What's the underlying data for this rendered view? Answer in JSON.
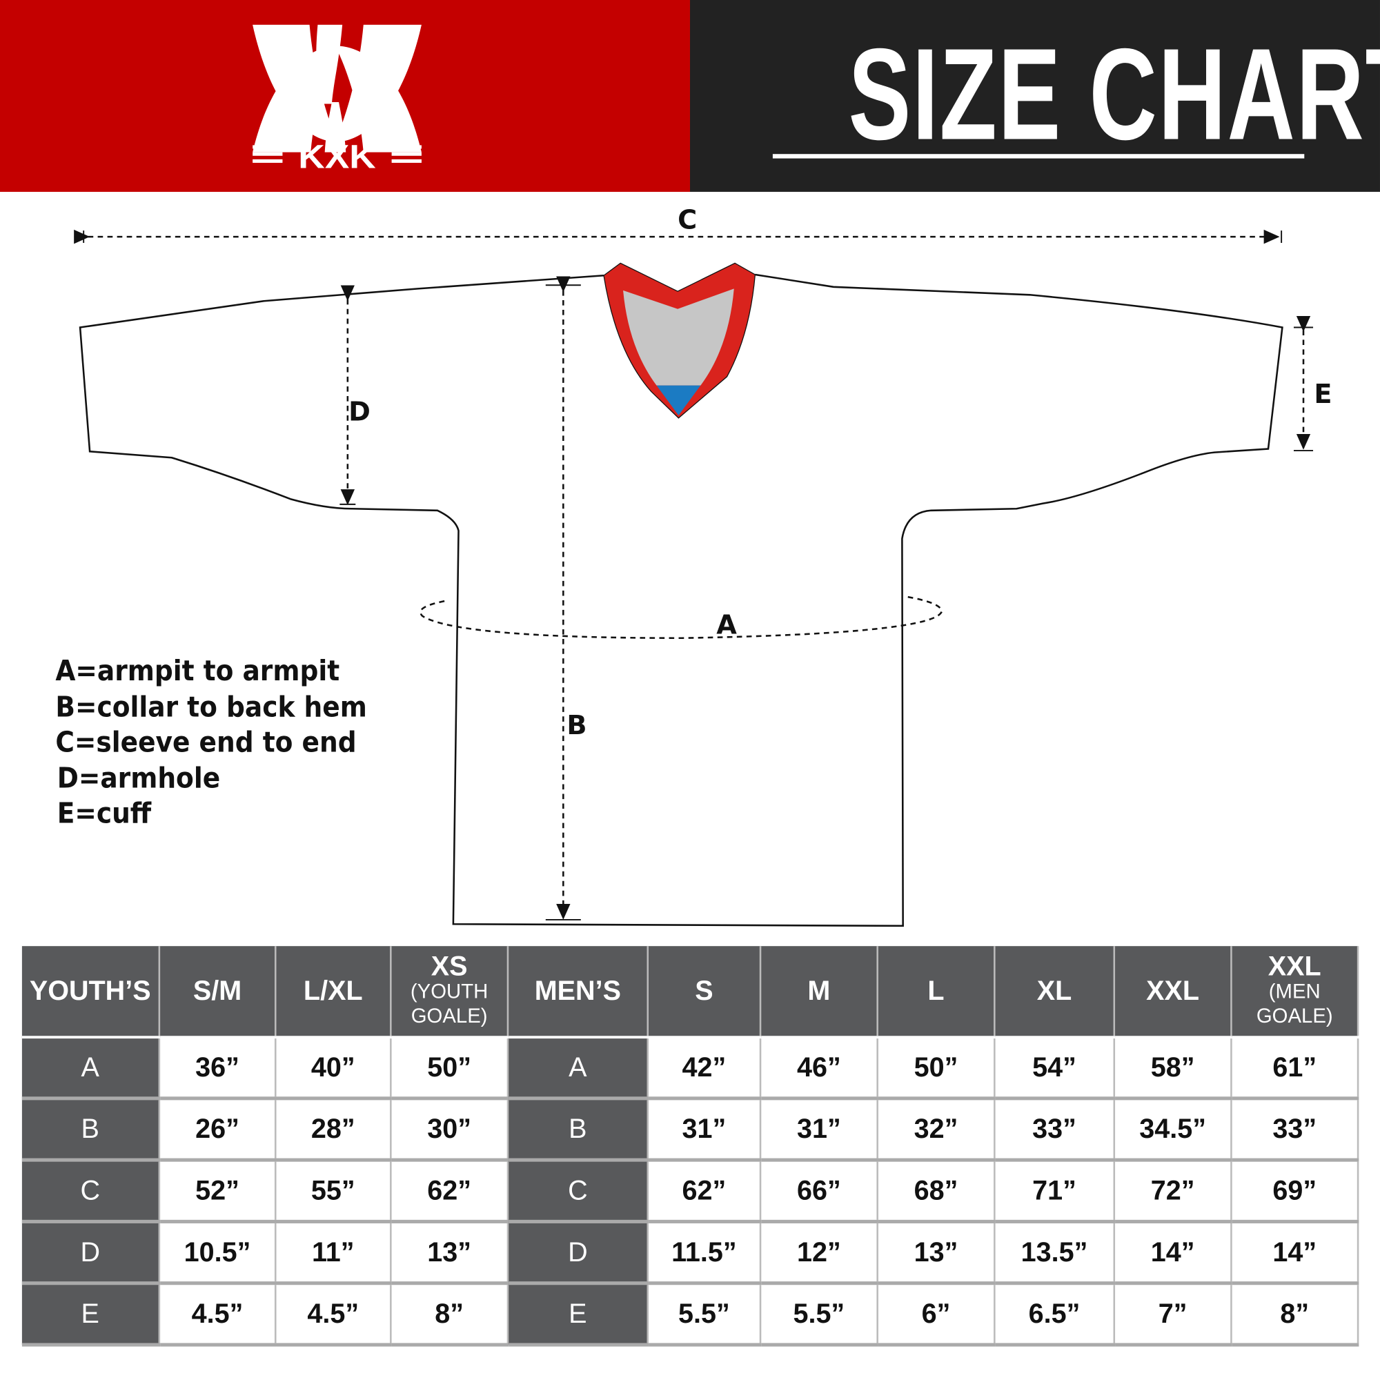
{
  "header": {
    "brand": "KXK",
    "title": "SIZE CHART",
    "colors": {
      "brand_red": "#c40000",
      "title_bg": "#222222",
      "header_gray": "#58595b"
    }
  },
  "diagram": {
    "labels": {
      "a": "A",
      "b": "B",
      "c": "C",
      "d": "D",
      "e": "E"
    },
    "legend": [
      "A=armpit to armpit",
      "B=collar to back hem",
      "C=sleeve end to end",
      "D=armhole",
      "E=cuff"
    ]
  },
  "table": {
    "headers": [
      {
        "main": "YOUTH’S",
        "sub": ""
      },
      {
        "main": "S/M",
        "sub": ""
      },
      {
        "main": "L/XL",
        "sub": ""
      },
      {
        "main": "XS",
        "sub": "(YOUTH GOALE)"
      },
      {
        "main": "MEN’S",
        "sub": ""
      },
      {
        "main": "S",
        "sub": ""
      },
      {
        "main": "M",
        "sub": ""
      },
      {
        "main": "L",
        "sub": ""
      },
      {
        "main": "XL",
        "sub": ""
      },
      {
        "main": "XXL",
        "sub": ""
      },
      {
        "main": "XXL",
        "sub": "(MEN GOALE)"
      }
    ],
    "rows": [
      {
        "label": "A",
        "youth": [
          "36”",
          "40”",
          "50”"
        ],
        "men": [
          "42”",
          "46”",
          "50”",
          "54”",
          "58”",
          "61”"
        ]
      },
      {
        "label": "B",
        "youth": [
          "26”",
          "28”",
          "30”"
        ],
        "men": [
          "31”",
          "31”",
          "32”",
          "33”",
          "34.5”",
          "33”"
        ]
      },
      {
        "label": "C",
        "youth": [
          "52”",
          "55”",
          "62”"
        ],
        "men": [
          "62”",
          "66”",
          "68”",
          "71”",
          "72”",
          "69”"
        ]
      },
      {
        "label": "D",
        "youth": [
          "10.5”",
          "11”",
          "13”"
        ],
        "men": [
          "11.5”",
          "12”",
          "13”",
          "13.5”",
          "14”",
          "14”"
        ]
      },
      {
        "label": "E",
        "youth": [
          "4.5”",
          "4.5”",
          "8”"
        ],
        "men": [
          "5.5”",
          "5.5”",
          "6”",
          "6.5”",
          "7”",
          "8”"
        ]
      }
    ]
  }
}
